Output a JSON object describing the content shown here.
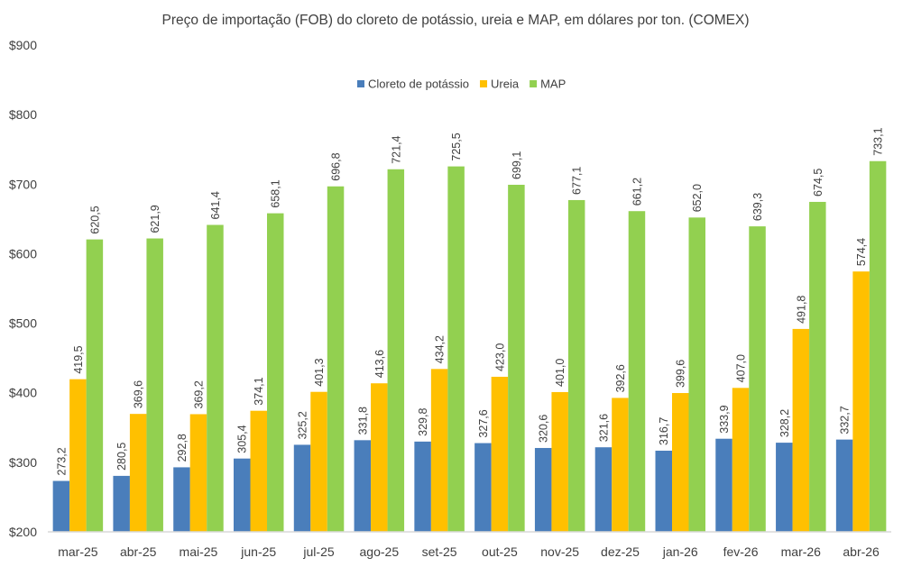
{
  "chart_data": {
    "type": "bar",
    "title": "Preço de importação (FOB) do cloreto de potássio, ureia e MAP, em dólares por ton. (COMEX)",
    "categories": [
      "mar-25",
      "abr-25",
      "mai-25",
      "jun-25",
      "jul-25",
      "ago-25",
      "set-25",
      "out-25",
      "nov-25",
      "dez-25",
      "jan-26",
      "fev-26",
      "mar-26",
      "abr-26"
    ],
    "series": [
      {
        "name": "Cloreto de potássio",
        "color": "#4a7ebb",
        "values": [
          273.2,
          280.5,
          292.8,
          305.4,
          325.2,
          331.8,
          329.8,
          327.6,
          320.6,
          321.6,
          316.7,
          333.9,
          328.2,
          332.7
        ],
        "labels": [
          "273,2",
          "280,5",
          "292,8",
          "305,4",
          "325,2",
          "331,8",
          "329,8",
          "327,6",
          "320,6",
          "321,6",
          "316,7",
          "333,9",
          "328,2",
          "332,7"
        ]
      },
      {
        "name": "Ureia",
        "color": "#ffc000",
        "values": [
          419.5,
          369.6,
          369.2,
          374.1,
          401.3,
          413.6,
          434.2,
          423.0,
          401.0,
          392.6,
          399.6,
          407.0,
          491.8,
          574.4
        ],
        "labels": [
          "419,5",
          "369,6",
          "369,2",
          "374,1",
          "401,3",
          "413,6",
          "434,2",
          "423,0",
          "401,0",
          "392,6",
          "399,6",
          "407,0",
          "491,8",
          "574,4"
        ]
      },
      {
        "name": "MAP",
        "color": "#92d050",
        "values": [
          620.5,
          621.9,
          641.4,
          658.1,
          696.8,
          721.4,
          725.5,
          699.1,
          677.1,
          661.2,
          652.0,
          639.3,
          674.5,
          733.1
        ],
        "labels": [
          "620,5",
          "621,9",
          "641,4",
          "658,1",
          "696,8",
          "721,4",
          "725,5",
          "699,1",
          "677,1",
          "661,2",
          "652,0",
          "639,3",
          "674,5",
          "733,1"
        ]
      }
    ],
    "ylim": [
      200,
      900
    ],
    "yticks": [
      {
        "value": 200,
        "label": "$200"
      },
      {
        "value": 300,
        "label": "$300"
      },
      {
        "value": 400,
        "label": "$400"
      },
      {
        "value": 500,
        "label": "$500"
      },
      {
        "value": 600,
        "label": "$600"
      },
      {
        "value": 700,
        "label": "$700"
      },
      {
        "value": 800,
        "label": "$800"
      },
      {
        "value": 900,
        "label": "$900"
      }
    ],
    "grid": false,
    "legend_position": "top-center",
    "axis_color": "#d9d9d9"
  }
}
